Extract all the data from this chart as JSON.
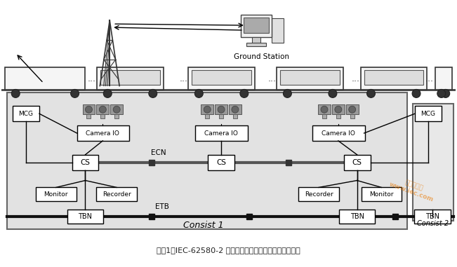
{
  "title": "（图1：IEC-62580-2 标准下的车载视频监控系统拓扑图）",
  "ground_station": "Ground Station",
  "consist1_label": "Consist 1",
  "consist2_label": "Consist 2",
  "ecn_label": "ECN",
  "etb_label": "ETB",
  "figsize": [
    6.51,
    3.81
  ],
  "dpi": 100
}
